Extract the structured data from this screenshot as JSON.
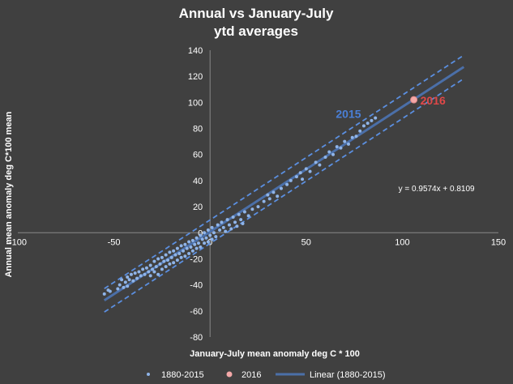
{
  "chart_data": {
    "type": "scatter",
    "title": "Annual vs  January-July",
    "subtitle": "ytd averages",
    "xlabel": "January-July mean anomaly deg C * 100",
    "ylabel": "Annual mean  anomaly deg C*100 mean",
    "xlim": [
      -100,
      150
    ],
    "ylim": [
      -80,
      140
    ],
    "xticks": [
      -100,
      -50,
      0,
      50,
      100,
      150
    ],
    "yticks": [
      -80,
      -60,
      -40,
      -20,
      0,
      20,
      40,
      60,
      80,
      100,
      120,
      140
    ],
    "grid": false,
    "series": [
      {
        "name": "1880-2015",
        "color": "#8fb4e8",
        "points": [
          [
            -55,
            -47
          ],
          [
            -53,
            -44
          ],
          [
            -52,
            -45
          ],
          [
            -47,
            -40
          ],
          [
            -46,
            -36
          ],
          [
            -45,
            -42
          ],
          [
            -44,
            -38
          ],
          [
            -43,
            -34
          ],
          [
            -43,
            -41
          ],
          [
            -42,
            -36
          ],
          [
            -41,
            -32
          ],
          [
            -40,
            -37
          ],
          [
            -39,
            -31
          ],
          [
            -38,
            -35
          ],
          [
            -37,
            -30
          ],
          [
            -36,
            -33
          ],
          [
            -35,
            -28
          ],
          [
            -34,
            -32
          ],
          [
            -33,
            -27
          ],
          [
            -32,
            -30
          ],
          [
            -31,
            -25
          ],
          [
            -31,
            -33
          ],
          [
            -30,
            -28
          ],
          [
            -29,
            -22
          ],
          [
            -29,
            -30
          ],
          [
            -28,
            -26
          ],
          [
            -27,
            -20
          ],
          [
            -27,
            -32
          ],
          [
            -26,
            -24
          ],
          [
            -25,
            -28
          ],
          [
            -25,
            -19
          ],
          [
            -24,
            -22
          ],
          [
            -23,
            -26
          ],
          [
            -23,
            -17
          ],
          [
            -22,
            -21
          ],
          [
            -21,
            -24
          ],
          [
            -21,
            -15
          ],
          [
            -20,
            -19
          ],
          [
            -19,
            -23
          ],
          [
            -19,
            -14
          ],
          [
            -18,
            -17
          ],
          [
            -17,
            -21
          ],
          [
            -17,
            -12
          ],
          [
            -16,
            -16
          ],
          [
            -15,
            -19
          ],
          [
            -15,
            -10
          ],
          [
            -14,
            -14
          ],
          [
            -13,
            -18
          ],
          [
            -13,
            -9
          ],
          [
            -12,
            -12
          ],
          [
            -11,
            -16
          ],
          [
            -11,
            -7
          ],
          [
            -10,
            -11
          ],
          [
            -9,
            -14
          ],
          [
            -9,
            -6
          ],
          [
            -8,
            -9
          ],
          [
            -7,
            -12
          ],
          [
            -7,
            -4
          ],
          [
            -6,
            -8
          ],
          [
            -5,
            -2
          ],
          [
            -5,
            -11
          ],
          [
            -4,
            -5
          ],
          [
            -3,
            -8
          ],
          [
            -3,
            0
          ],
          [
            -2,
            -4
          ],
          [
            -1,
            -7
          ],
          [
            -1,
            2
          ],
          [
            0,
            -2
          ],
          [
            1,
            -5
          ],
          [
            1,
            4
          ],
          [
            2,
            0
          ],
          [
            3,
            -3
          ],
          [
            4,
            6
          ],
          [
            5,
            2
          ],
          [
            6,
            8
          ],
          [
            7,
            4
          ],
          [
            8,
            1
          ],
          [
            9,
            10
          ],
          [
            10,
            6
          ],
          [
            11,
            3
          ],
          [
            12,
            12
          ],
          [
            13,
            8
          ],
          [
            14,
            5
          ],
          [
            15,
            14
          ],
          [
            16,
            10
          ],
          [
            17,
            7
          ],
          [
            18,
            16
          ],
          [
            20,
            13
          ],
          [
            22,
            18
          ],
          [
            25,
            20
          ],
          [
            28,
            24
          ],
          [
            30,
            29
          ],
          [
            31,
            26
          ],
          [
            33,
            31
          ],
          [
            35,
            28
          ],
          [
            37,
            34
          ],
          [
            40,
            37
          ],
          [
            42,
            40
          ],
          [
            45,
            43
          ],
          [
            47,
            46
          ],
          [
            48,
            41
          ],
          [
            50,
            49
          ],
          [
            52,
            47
          ],
          [
            55,
            54
          ],
          [
            57,
            52
          ],
          [
            60,
            58
          ],
          [
            62,
            62
          ],
          [
            64,
            60
          ],
          [
            66,
            66
          ],
          [
            68,
            65
          ],
          [
            70,
            70
          ],
          [
            72,
            68
          ],
          [
            74,
            73
          ],
          [
            76,
            74
          ],
          [
            78,
            78
          ],
          [
            80,
            82
          ],
          [
            82,
            84
          ],
          [
            84,
            86
          ],
          [
            86,
            88
          ],
          [
            -48,
            -43
          ]
        ]
      },
      {
        "name": "2016",
        "color": "#f4a8a8",
        "points": [
          [
            106,
            102
          ]
        ],
        "label": "2016",
        "label_color": "#e04848"
      }
    ],
    "annotations": [
      {
        "text": "2015",
        "color": "#4a7fd6",
        "at": [
          72,
          88
        ]
      }
    ],
    "trendline": {
      "name": "Linear (1880-2015)",
      "slope": 0.9574,
      "intercept": 0.8109,
      "x_range": [
        -55,
        132
      ],
      "equation": "y = 0.9574x + 0.8109",
      "equation_at": [
        98,
        32
      ],
      "band_offset": 9,
      "color": "#4b6fa8"
    }
  }
}
